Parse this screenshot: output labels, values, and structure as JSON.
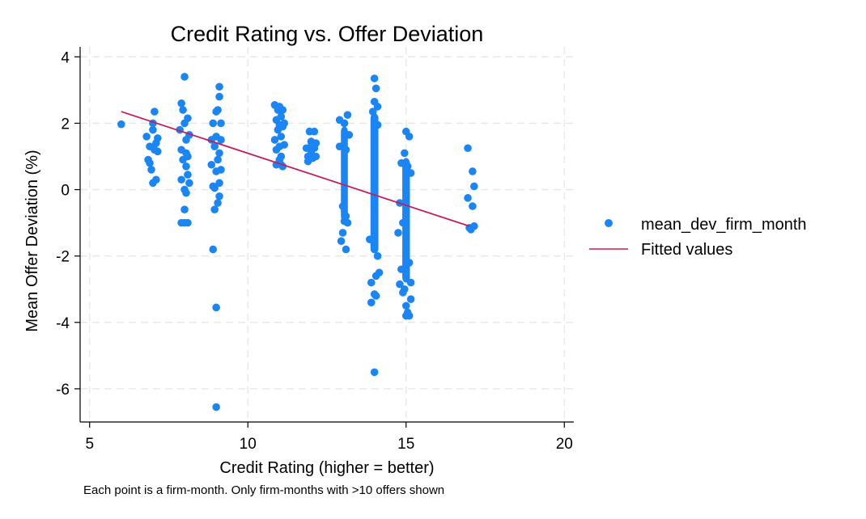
{
  "chart_data": {
    "type": "scatter",
    "title": "Credit Rating vs. Offer Deviation",
    "xlabel": "Credit Rating (higher = better)",
    "ylabel": "Mean Offer Deviation (%)",
    "note": "Each point is a firm-month. Only firm-months with >10 offers shown",
    "xlim": [
      4.7,
      20.3
    ],
    "ylim": [
      -7,
      4.3
    ],
    "x_ticks": [
      5,
      10,
      15,
      20
    ],
    "y_ticks": [
      -6,
      -4,
      -2,
      0,
      2,
      4
    ],
    "grid": true,
    "legend_position": "right",
    "colors": {
      "points": "#1a86f5",
      "fit": "#c41e5a"
    },
    "series": [
      {
        "name": "mean_dev_firm_month",
        "kind": "scatter",
        "points": [
          [
            6.0,
            1.97
          ],
          [
            6.8,
            1.6
          ],
          [
            6.85,
            0.9
          ],
          [
            6.9,
            1.3
          ],
          [
            6.95,
            0.6
          ],
          [
            7.0,
            1.8
          ],
          [
            7.0,
            0.2
          ],
          [
            7.05,
            2.35
          ],
          [
            7.05,
            1.2
          ],
          [
            7.1,
            0.3
          ],
          [
            7.1,
            1.4
          ],
          [
            7.15,
            1.55
          ],
          [
            7.15,
            1.15
          ],
          [
            7.0,
            2.0
          ],
          [
            6.9,
            0.8
          ],
          [
            7.85,
            1.8
          ],
          [
            7.9,
            2.6
          ],
          [
            7.9,
            1.2
          ],
          [
            7.9,
            0.3
          ],
          [
            7.95,
            2.4
          ],
          [
            7.95,
            0.9
          ],
          [
            8.0,
            3.4
          ],
          [
            8.0,
            -1.0
          ],
          [
            8.0,
            -0.6
          ],
          [
            8.0,
            2.0
          ],
          [
            8.05,
            1.5
          ],
          [
            8.05,
            0.7
          ],
          [
            8.05,
            -0.1
          ],
          [
            8.1,
            2.15
          ],
          [
            8.1,
            1.0
          ],
          [
            8.1,
            0.45
          ],
          [
            8.15,
            1.65
          ],
          [
            8.15,
            0.2
          ],
          [
            7.9,
            -1.0
          ],
          [
            8.1,
            -1.0
          ],
          [
            8.0,
            0.0
          ],
          [
            8.05,
            1.1
          ],
          [
            8.85,
            1.5
          ],
          [
            8.85,
            0.75
          ],
          [
            8.9,
            2.0
          ],
          [
            8.9,
            0.1
          ],
          [
            8.9,
            -1.8
          ],
          [
            8.95,
            -0.6
          ],
          [
            8.95,
            1.3
          ],
          [
            9.0,
            2.35
          ],
          [
            9.0,
            1.6
          ],
          [
            9.0,
            0.55
          ],
          [
            9.0,
            -3.55
          ],
          [
            9.0,
            -6.55
          ],
          [
            9.05,
            0.9
          ],
          [
            9.05,
            -0.4
          ],
          [
            9.05,
            2.4
          ],
          [
            9.1,
            3.1
          ],
          [
            9.1,
            2.8
          ],
          [
            9.1,
            1.1
          ],
          [
            9.1,
            0.2
          ],
          [
            9.15,
            2.0
          ],
          [
            9.15,
            1.5
          ],
          [
            9.15,
            0.6
          ],
          [
            9.1,
            -0.2
          ],
          [
            8.95,
            0.05
          ],
          [
            10.85,
            2.55
          ],
          [
            10.85,
            1.5
          ],
          [
            10.9,
            2.1
          ],
          [
            10.9,
            0.75
          ],
          [
            10.95,
            2.4
          ],
          [
            10.95,
            1.8
          ],
          [
            11.0,
            2.5
          ],
          [
            11.0,
            1.3
          ],
          [
            11.0,
            0.9
          ],
          [
            11.05,
            2.2
          ],
          [
            11.05,
            1.6
          ],
          [
            11.05,
            1.0
          ],
          [
            11.1,
            2.4
          ],
          [
            11.1,
            1.9
          ],
          [
            11.1,
            0.7
          ],
          [
            11.15,
            2.0
          ],
          [
            11.15,
            1.35
          ],
          [
            10.9,
            1.2
          ],
          [
            11.0,
            1.95
          ],
          [
            11.05,
            0.75
          ],
          [
            11.85,
            1.25
          ],
          [
            11.9,
            0.85
          ],
          [
            11.9,
            1.0
          ],
          [
            11.95,
            1.75
          ],
          [
            12.0,
            1.45
          ],
          [
            12.0,
            1.1
          ],
          [
            12.05,
            0.95
          ],
          [
            12.1,
            1.75
          ],
          [
            12.1,
            1.25
          ],
          [
            12.15,
            1.4
          ],
          [
            12.15,
            1.0
          ],
          [
            12.0,
            1.3
          ],
          [
            13.0,
            -0.5
          ],
          [
            13.0,
            -1.3
          ],
          [
            13.1,
            -1.8
          ],
          [
            12.95,
            -1.55
          ],
          [
            13.05,
            -0.95
          ],
          [
            13.1,
            -0.8
          ],
          [
            12.9,
            2.1
          ],
          [
            13.05,
            2.0
          ],
          [
            13.15,
            2.25
          ],
          [
            13.15,
            -1.0
          ],
          [
            13.2,
            1.65
          ],
          [
            12.9,
            1.3
          ],
          [
            13.1,
            1.2
          ],
          [
            13.85,
            -1.5
          ],
          [
            13.9,
            -2.8
          ],
          [
            13.9,
            -3.4
          ],
          [
            14.0,
            -5.5
          ],
          [
            14.0,
            -3.15
          ],
          [
            14.05,
            -2.6
          ],
          [
            14.05,
            -3.2
          ],
          [
            14.1,
            -2.0
          ],
          [
            14.0,
            3.35
          ],
          [
            14.05,
            3.05
          ],
          [
            14.0,
            2.65
          ],
          [
            14.1,
            2.5
          ],
          [
            13.95,
            2.35
          ],
          [
            14.15,
            -2.5
          ],
          [
            14.1,
            1.95
          ],
          [
            14.0,
            -1.8
          ],
          [
            14.75,
            -1.3
          ],
          [
            14.8,
            -0.4
          ],
          [
            14.85,
            -2.4
          ],
          [
            14.9,
            -1.0
          ],
          [
            14.9,
            -3.1
          ],
          [
            14.95,
            1.1
          ],
          [
            14.95,
            -3.0
          ],
          [
            15.0,
            -3.5
          ],
          [
            15.0,
            -3.8
          ],
          [
            15.0,
            1.75
          ],
          [
            15.05,
            -3.7
          ],
          [
            15.1,
            -3.8
          ],
          [
            15.1,
            -2.2
          ],
          [
            15.15,
            -3.3
          ],
          [
            15.15,
            -2.8
          ],
          [
            15.05,
            0.7
          ],
          [
            15.1,
            1.6
          ],
          [
            14.85,
            0.8
          ],
          [
            15.15,
            0.5
          ],
          [
            14.8,
            -2.85
          ],
          [
            16.95,
            1.25
          ],
          [
            16.95,
            -0.25
          ],
          [
            17.0,
            -1.15
          ],
          [
            17.05,
            -1.2
          ],
          [
            17.1,
            -0.5
          ],
          [
            17.1,
            0.55
          ],
          [
            17.15,
            0.1
          ],
          [
            17.15,
            -1.1
          ]
        ]
      },
      {
        "name": "Fitted values",
        "kind": "line",
        "x": [
          6.0,
          17.0
        ],
        "y": [
          2.35,
          -1.1
        ]
      }
    ]
  }
}
